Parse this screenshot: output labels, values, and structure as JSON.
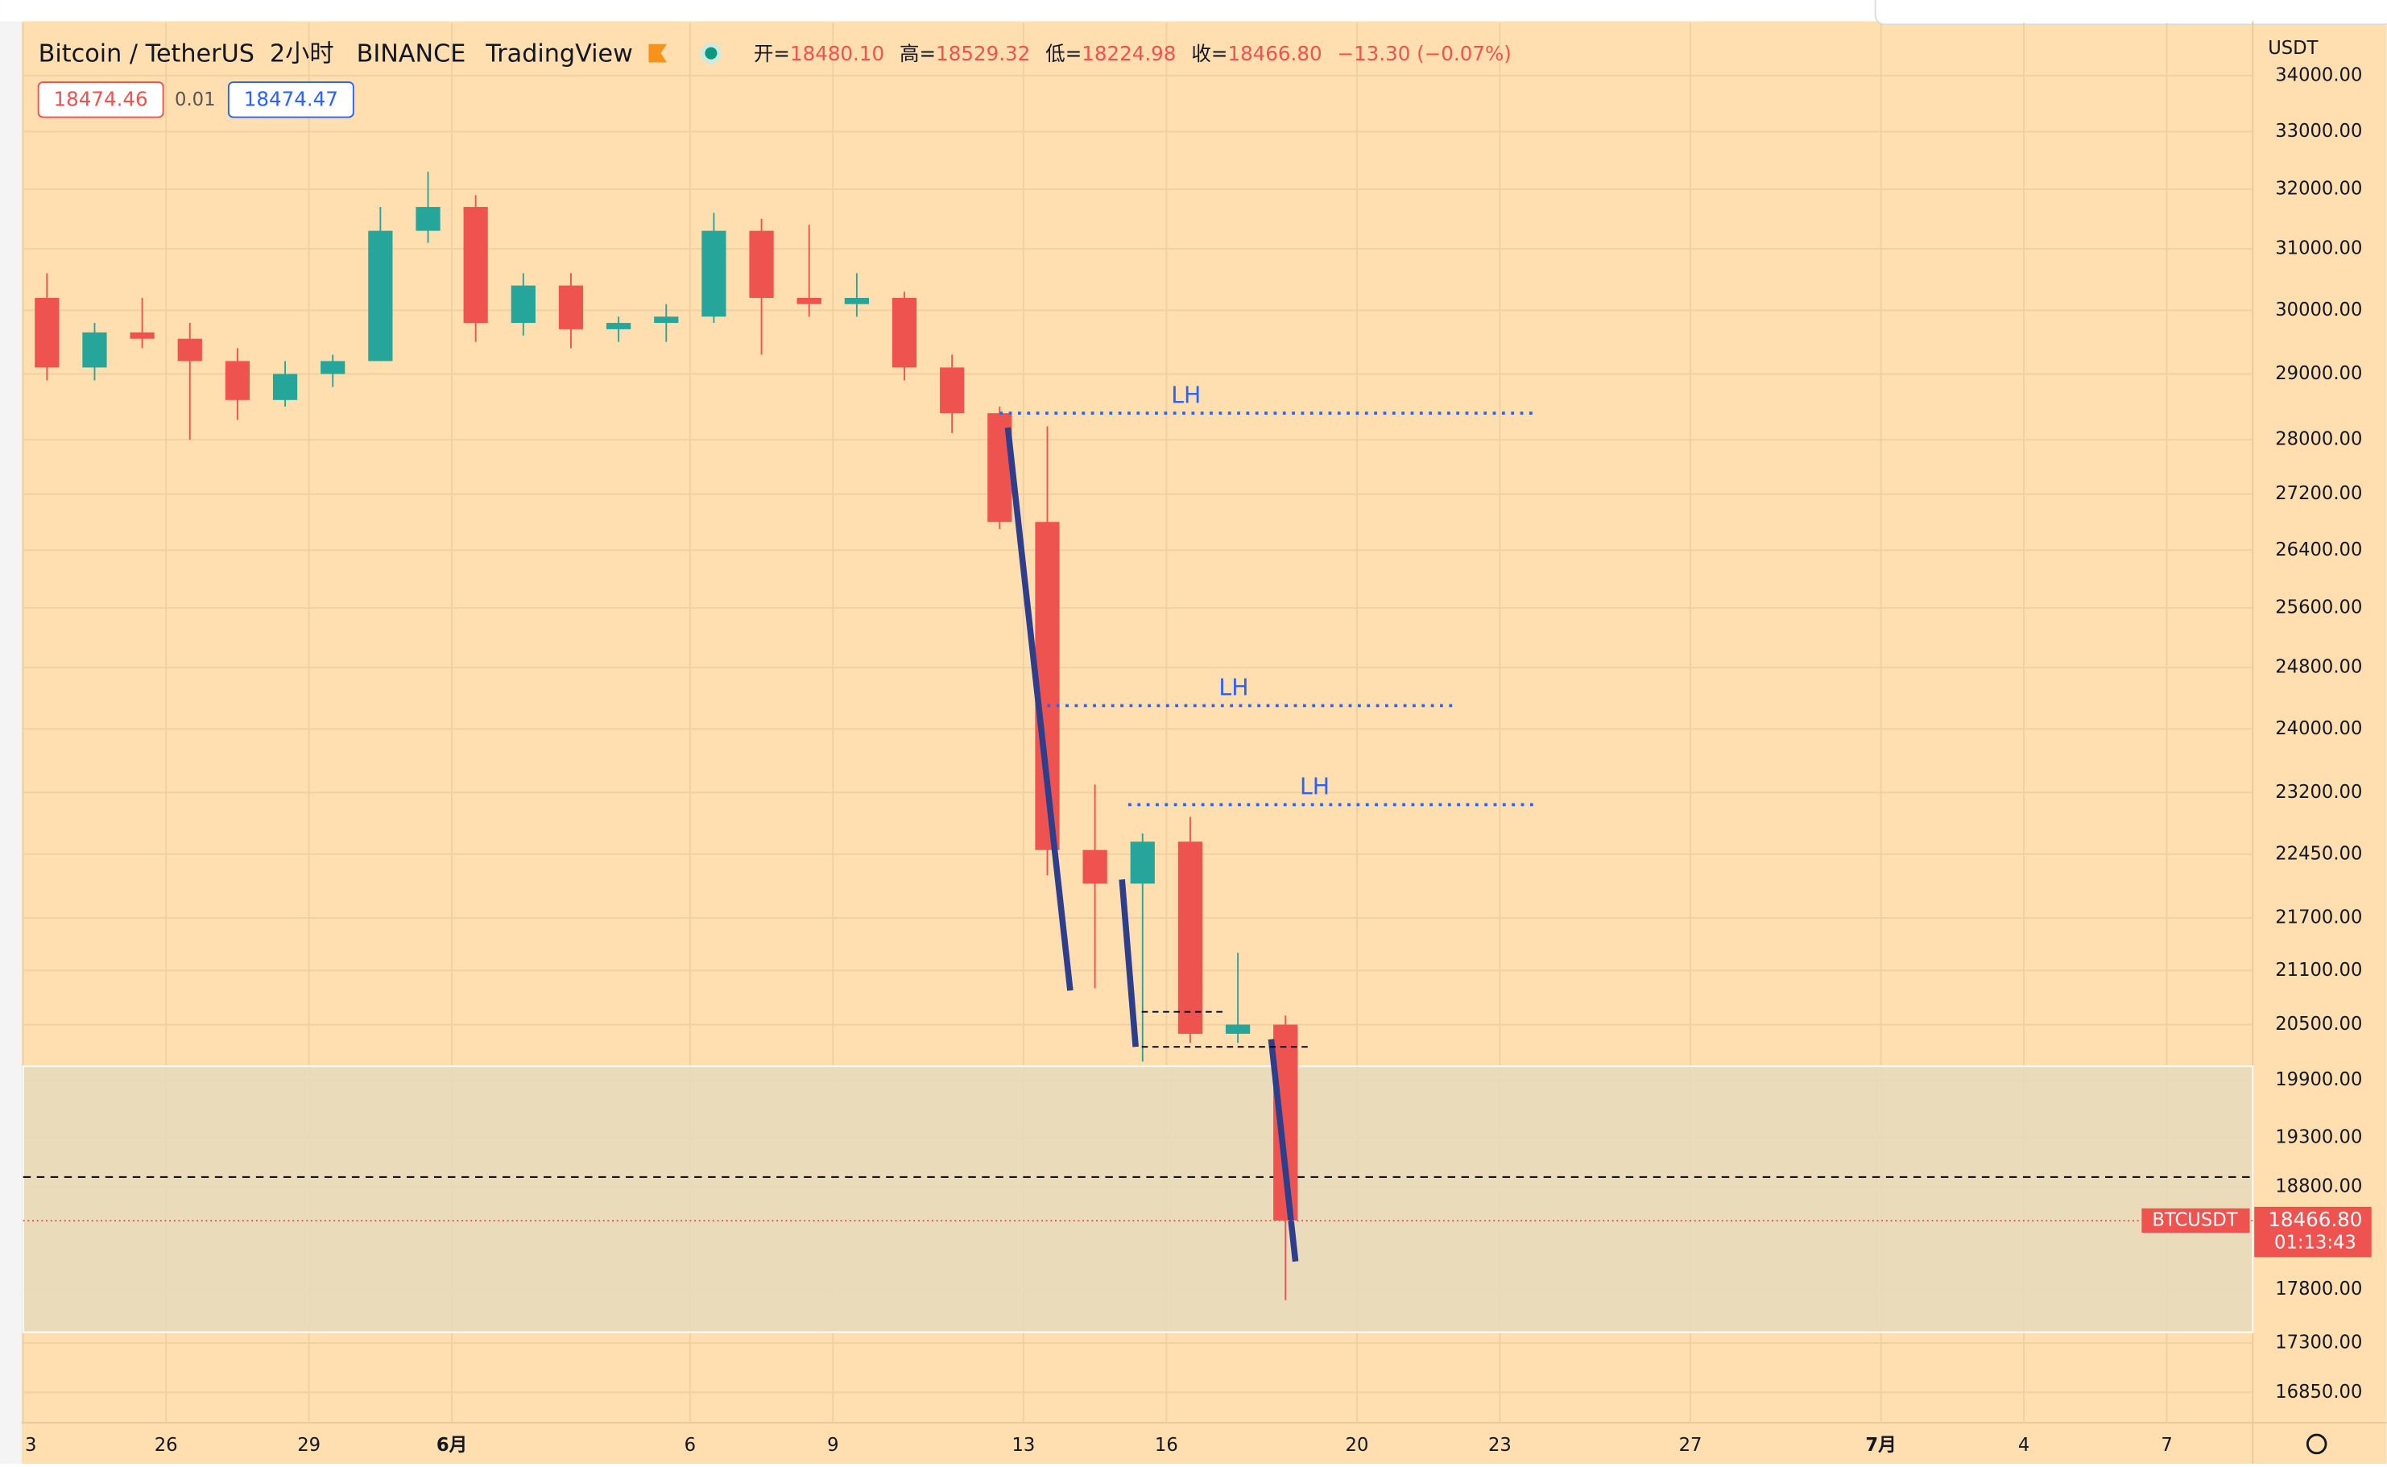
{
  "header": {
    "symbol": "Bitcoin / TetherUS",
    "interval": "2小时",
    "exchange": "BINANCE",
    "source": "TradingView",
    "ohlc": [
      {
        "label": "开=",
        "value": "18480.10"
      },
      {
        "label": "高=",
        "value": "18529.32"
      },
      {
        "label": "低=",
        "value": "18224.98"
      },
      {
        "label": "收=",
        "value": "18466.80"
      }
    ],
    "change": "−13.30 (−0.07%)",
    "bid": "18474.46",
    "spread": "0.01",
    "ask": "18474.47",
    "currency": "USDT"
  },
  "chart_data": {
    "type": "candlestick",
    "log": true,
    "grid": true,
    "up_color": "#26a69a",
    "down_color": "#ef5350",
    "categories": [
      "3",
      null,
      null,
      "26",
      null,
      null,
      "29",
      null,
      null,
      "6月",
      null,
      null,
      null,
      null,
      "6",
      null,
      null,
      "9",
      null,
      null,
      null,
      "13",
      null,
      null,
      "16",
      null,
      null,
      null,
      "20",
      null,
      null,
      "23",
      null,
      null,
      null,
      "27",
      null,
      null,
      null,
      "7月",
      null,
      null,
      "4",
      null,
      null,
      "7",
      null
    ],
    "open": [
      30200,
      29100,
      29650,
      29550,
      29200,
      28600,
      29000,
      29200,
      31300,
      31700,
      29800,
      30400,
      29700,
      29800,
      29900,
      31300,
      30200,
      30100,
      30200,
      29100,
      28400,
      26800,
      22500,
      22100,
      22600,
      20400,
      20500,
      null,
      null,
      null,
      null,
      null,
      null,
      null,
      null,
      null,
      null,
      null,
      null,
      null,
      null,
      null,
      null,
      null,
      null,
      null,
      null
    ],
    "high": [
      30600,
      29800,
      30200,
      29800,
      29400,
      29200,
      29300,
      31700,
      32300,
      31900,
      30600,
      30600,
      29900,
      30100,
      31600,
      31500,
      31400,
      30600,
      30300,
      29300,
      28500,
      28200,
      23300,
      22700,
      22900,
      21300,
      20600,
      null,
      null,
      null,
      null,
      null,
      null,
      null,
      null,
      null,
      null,
      null,
      null,
      null,
      null,
      null,
      null,
      null,
      null,
      null,
      null
    ],
    "low": [
      28900,
      28900,
      29400,
      28000,
      28300,
      28500,
      28800,
      29200,
      31100,
      29500,
      29600,
      29400,
      29500,
      29500,
      29800,
      29300,
      29900,
      29900,
      28900,
      28100,
      26700,
      22200,
      20900,
      20100,
      20300,
      20300,
      17700,
      null,
      null,
      null,
      null,
      null,
      null,
      null,
      null,
      null,
      null,
      null,
      null,
      null,
      null,
      null,
      null,
      null,
      null,
      null,
      null
    ],
    "close": [
      29100,
      29650,
      29550,
      29200,
      28600,
      29000,
      29200,
      31300,
      31700,
      29800,
      30400,
      29700,
      29800,
      29900,
      31300,
      30200,
      30100,
      30200,
      29100,
      28400,
      26800,
      22500,
      22100,
      22600,
      20400,
      20500,
      18466.8,
      null,
      null,
      null,
      null,
      null,
      null,
      null,
      null,
      null,
      null,
      null,
      null,
      null,
      null,
      null,
      null,
      null,
      null,
      null,
      null
    ],
    "ylim": [
      16580,
      34970
    ],
    "yticks": [
      {
        "value": 34000,
        "label": "34000.00"
      },
      {
        "value": 33000,
        "label": "33000.00"
      },
      {
        "value": 32000,
        "label": "32000.00"
      },
      {
        "value": 31000,
        "label": "31000.00"
      },
      {
        "value": 30000,
        "label": "30000.00"
      },
      {
        "value": 29000,
        "label": "29000.00"
      },
      {
        "value": 28000,
        "label": "28000.00"
      },
      {
        "value": 27200,
        "label": "27200.00"
      },
      {
        "value": 26400,
        "label": "26400.00"
      },
      {
        "value": 25600,
        "label": "25600.00"
      },
      {
        "value": 24800,
        "label": "24800.00"
      },
      {
        "value": 24000,
        "label": "24000.00"
      },
      {
        "value": 23200,
        "label": "23200.00"
      },
      {
        "value": 22450,
        "label": "22450.00"
      },
      {
        "value": 21700,
        "label": "21700.00"
      },
      {
        "value": 21100,
        "label": "21100.00"
      },
      {
        "value": 20500,
        "label": "20500.00"
      },
      {
        "value": 19900,
        "label": "19900.00"
      },
      {
        "value": 19300,
        "label": "19300.00"
      },
      {
        "value": 18800,
        "label": "18800.00"
      },
      {
        "value": 17800,
        "label": "17800.00"
      },
      {
        "value": 17300,
        "label": "17300.00"
      },
      {
        "value": 16850,
        "label": "16850.00"
      }
    ],
    "annotations": [
      {
        "label": "LH",
        "value": 28400
      },
      {
        "label": "LH",
        "value": 24300
      },
      {
        "label": "LH",
        "value": 23050
      }
    ],
    "zone": [
      17400,
      20050
    ],
    "level": 18900,
    "last_price": {
      "symbol": "BTCUSDT",
      "value": 18466.8,
      "label": "18466.80",
      "countdown": "01:13:43"
    }
  }
}
